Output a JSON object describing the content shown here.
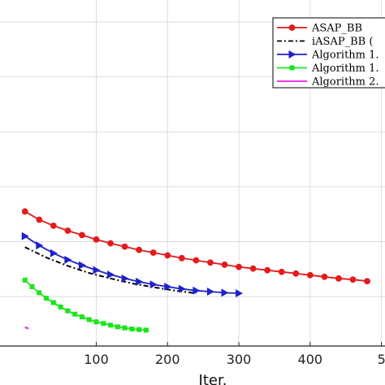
{
  "chart_data": {
    "type": "line",
    "xlabel": "Iter.",
    "ylabel": "",
    "title": "",
    "x_ticks": [
      "100",
      "200",
      "300",
      "400",
      "5"
    ],
    "grid": true,
    "legend_position": "top-right",
    "series": [
      {
        "name": "ASAP_BB",
        "color": "#e41a1c",
        "marker": "circle",
        "linestyle": "solid",
        "x": [
          0,
          20,
          40,
          60,
          80,
          100,
          120,
          140,
          160,
          180,
          200,
          220,
          240,
          260,
          280,
          300,
          320,
          340,
          360,
          380,
          400,
          420,
          440,
          460,
          480
        ],
        "y": [
          4.55,
          4.4,
          4.29,
          4.2,
          4.12,
          4.04,
          3.97,
          3.91,
          3.85,
          3.8,
          3.75,
          3.7,
          3.66,
          3.62,
          3.58,
          3.54,
          3.51,
          3.48,
          3.45,
          3.42,
          3.39,
          3.36,
          3.33,
          3.31,
          3.28
        ]
      },
      {
        "name": "iASAP_BB (",
        "color": "#000000",
        "marker": "none",
        "linestyle": "dashdot",
        "x": [
          0,
          30,
          60,
          90,
          120,
          150,
          180,
          210,
          240
        ],
        "y": [
          3.9,
          3.71,
          3.56,
          3.43,
          3.33,
          3.24,
          3.17,
          3.11,
          3.06
        ]
      },
      {
        "name": "Algorithm 1.",
        "color": "#1f22c8",
        "marker": "triangle-right",
        "linestyle": "solid",
        "x": [
          0,
          20,
          40,
          60,
          80,
          100,
          120,
          140,
          160,
          180,
          200,
          220,
          240,
          260,
          280,
          300
        ],
        "y": [
          4.1,
          3.93,
          3.79,
          3.67,
          3.57,
          3.48,
          3.4,
          3.33,
          3.27,
          3.22,
          3.18,
          3.14,
          3.11,
          3.09,
          3.07,
          3.06
        ]
      },
      {
        "name": "Algorithm 1.",
        "color": "#19e619",
        "marker": "square",
        "linestyle": "solid",
        "x": [
          0,
          10,
          20,
          30,
          40,
          50,
          60,
          70,
          80,
          90,
          100,
          110,
          120,
          130,
          140,
          150,
          160,
          170
        ],
        "y": [
          3.3,
          3.18,
          3.07,
          2.97,
          2.89,
          2.81,
          2.74,
          2.68,
          2.63,
          2.58,
          2.54,
          2.51,
          2.48,
          2.45,
          2.43,
          2.41,
          2.4,
          2.39
        ]
      },
      {
        "name": "Algorithm 2.",
        "color": "#e619e6",
        "marker": "none",
        "linestyle": "solid",
        "x": [
          0,
          5
        ],
        "y": [
          2.44,
          2.42
        ]
      }
    ],
    "xlim": [
      -35,
      505
    ],
    "ylim": [
      2.1,
      8.4
    ]
  }
}
